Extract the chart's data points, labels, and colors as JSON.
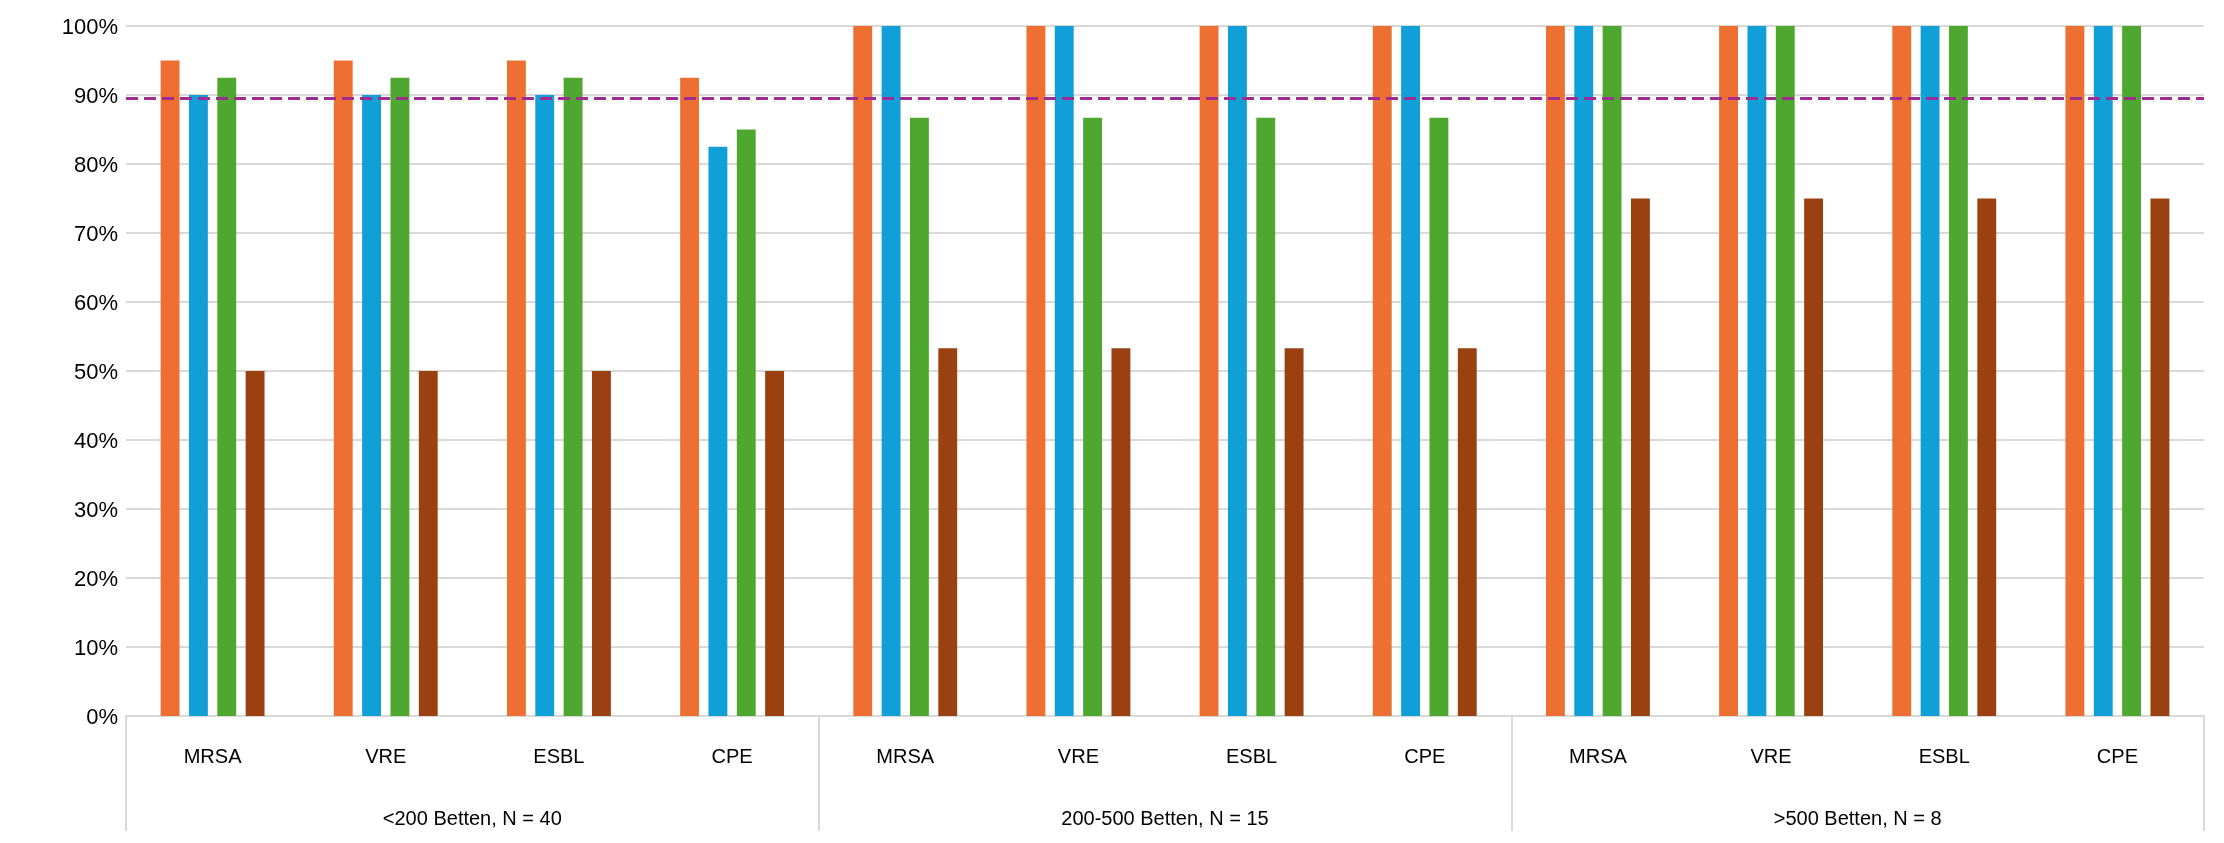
{
  "chart_data": {
    "type": "bar",
    "categories": [
      "MRSA",
      "VRE",
      "ESBL",
      "CPE",
      "MRSA",
      "VRE",
      "ESBL",
      "CPE",
      "MRSA",
      "VRE",
      "ESBL",
      "CPE"
    ],
    "annotations": [
      "<200 Betten, N = 40",
      "200-500 Betten, N = 15",
      ">500 Betten, N = 8"
    ],
    "series": [
      {
        "color": "#ed7032",
        "values": [
          95,
          95,
          95,
          92.5,
          100,
          100,
          100,
          100,
          100,
          100,
          100,
          100
        ]
      },
      {
        "color": "#109fd6",
        "values": [
          90,
          90,
          90,
          82.5,
          100,
          100,
          100,
          100,
          100,
          100,
          100,
          100
        ]
      },
      {
        "color": "#4ea72e",
        "values": [
          92.5,
          92.5,
          92.5,
          85,
          86.7,
          86.7,
          86.7,
          86.7,
          100,
          100,
          100,
          100
        ]
      },
      {
        "color": "#9a4011",
        "values": [
          50,
          50,
          50,
          50,
          53.3,
          53.3,
          53.3,
          53.3,
          75,
          75,
          75,
          75
        ]
      }
    ],
    "ylim": [
      0,
      100
    ],
    "yticks": [
      {
        "value": 0,
        "label": "0%"
      },
      {
        "value": 10,
        "label": "10%"
      },
      {
        "value": 20,
        "label": "20%"
      },
      {
        "value": 30,
        "label": "30%"
      },
      {
        "value": 40,
        "label": "40%"
      },
      {
        "value": 50,
        "label": "50%"
      },
      {
        "value": 60,
        "label": "60%"
      },
      {
        "value": 70,
        "label": "70%"
      },
      {
        "value": 80,
        "label": "80%"
      },
      {
        "value": 90,
        "label": "90%"
      },
      {
        "value": 100,
        "label": "100%"
      }
    ],
    "ref_lines": [
      {
        "axis": "y",
        "value": 89.5,
        "color": "#a02b93",
        "line_style": "dashed"
      }
    ],
    "grid": "y"
  }
}
